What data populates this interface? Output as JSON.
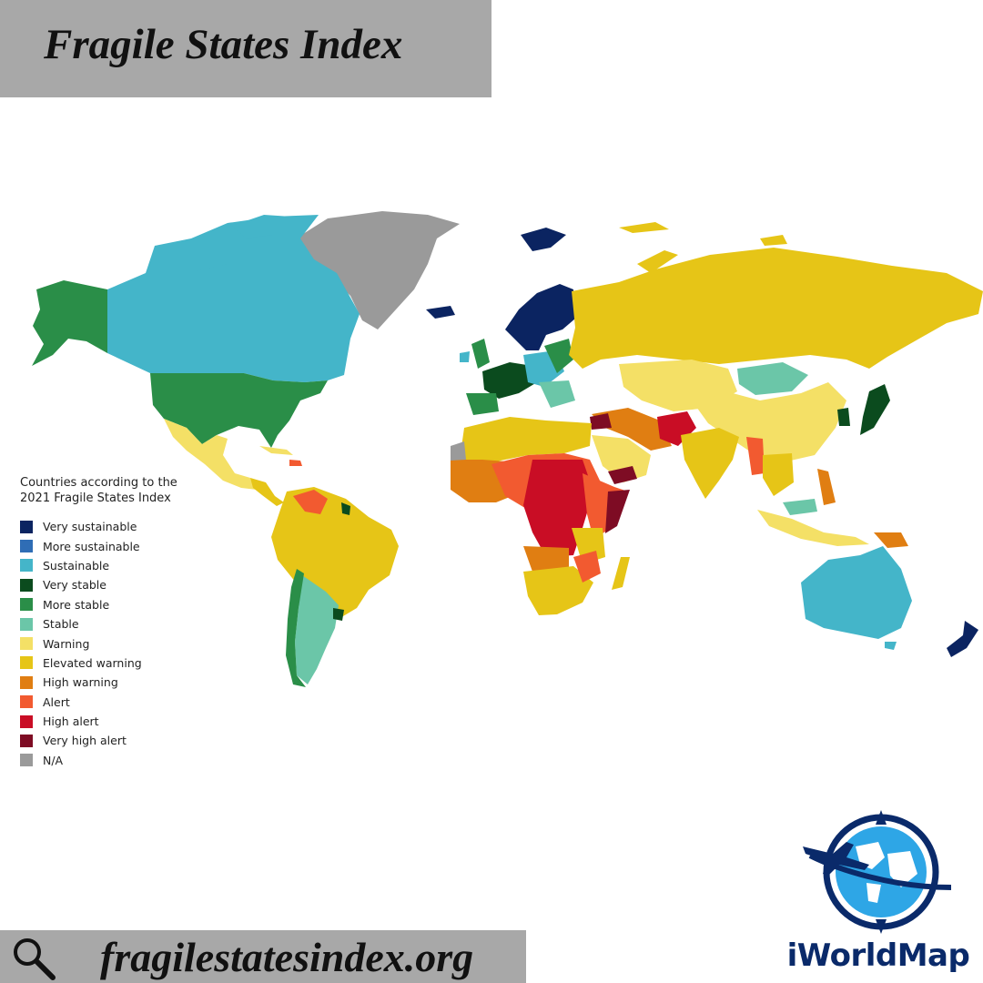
{
  "header": {
    "title": "Fragile States Index"
  },
  "legend": {
    "title": "Countries according to the 2021 Fragile States Index",
    "items": [
      {
        "label": "Very sustainable",
        "color": "#0b2461"
      },
      {
        "label": "More sustainable",
        "color": "#2f6db5"
      },
      {
        "label": "Sustainable",
        "color": "#44b5c9"
      },
      {
        "label": "Very stable",
        "color": "#0b4b1e"
      },
      {
        "label": "More stable",
        "color": "#2a8e48"
      },
      {
        "label": "Stable",
        "color": "#6bc6a8"
      },
      {
        "label": "Warning",
        "color": "#f4e066"
      },
      {
        "label": "Elevated warning",
        "color": "#e6c517"
      },
      {
        "label": "High warning",
        "color": "#e07e12"
      },
      {
        "label": "Alert",
        "color": "#f25a30"
      },
      {
        "label": "High alert",
        "color": "#c90d25"
      },
      {
        "label": "Very high alert",
        "color": "#7e0c24"
      },
      {
        "label": "N/A",
        "color": "#9a9a9a"
      }
    ]
  },
  "footer": {
    "url": "fragilestatesindex.org",
    "icon": "search-icon"
  },
  "logo": {
    "name": "iWorldMap"
  }
}
